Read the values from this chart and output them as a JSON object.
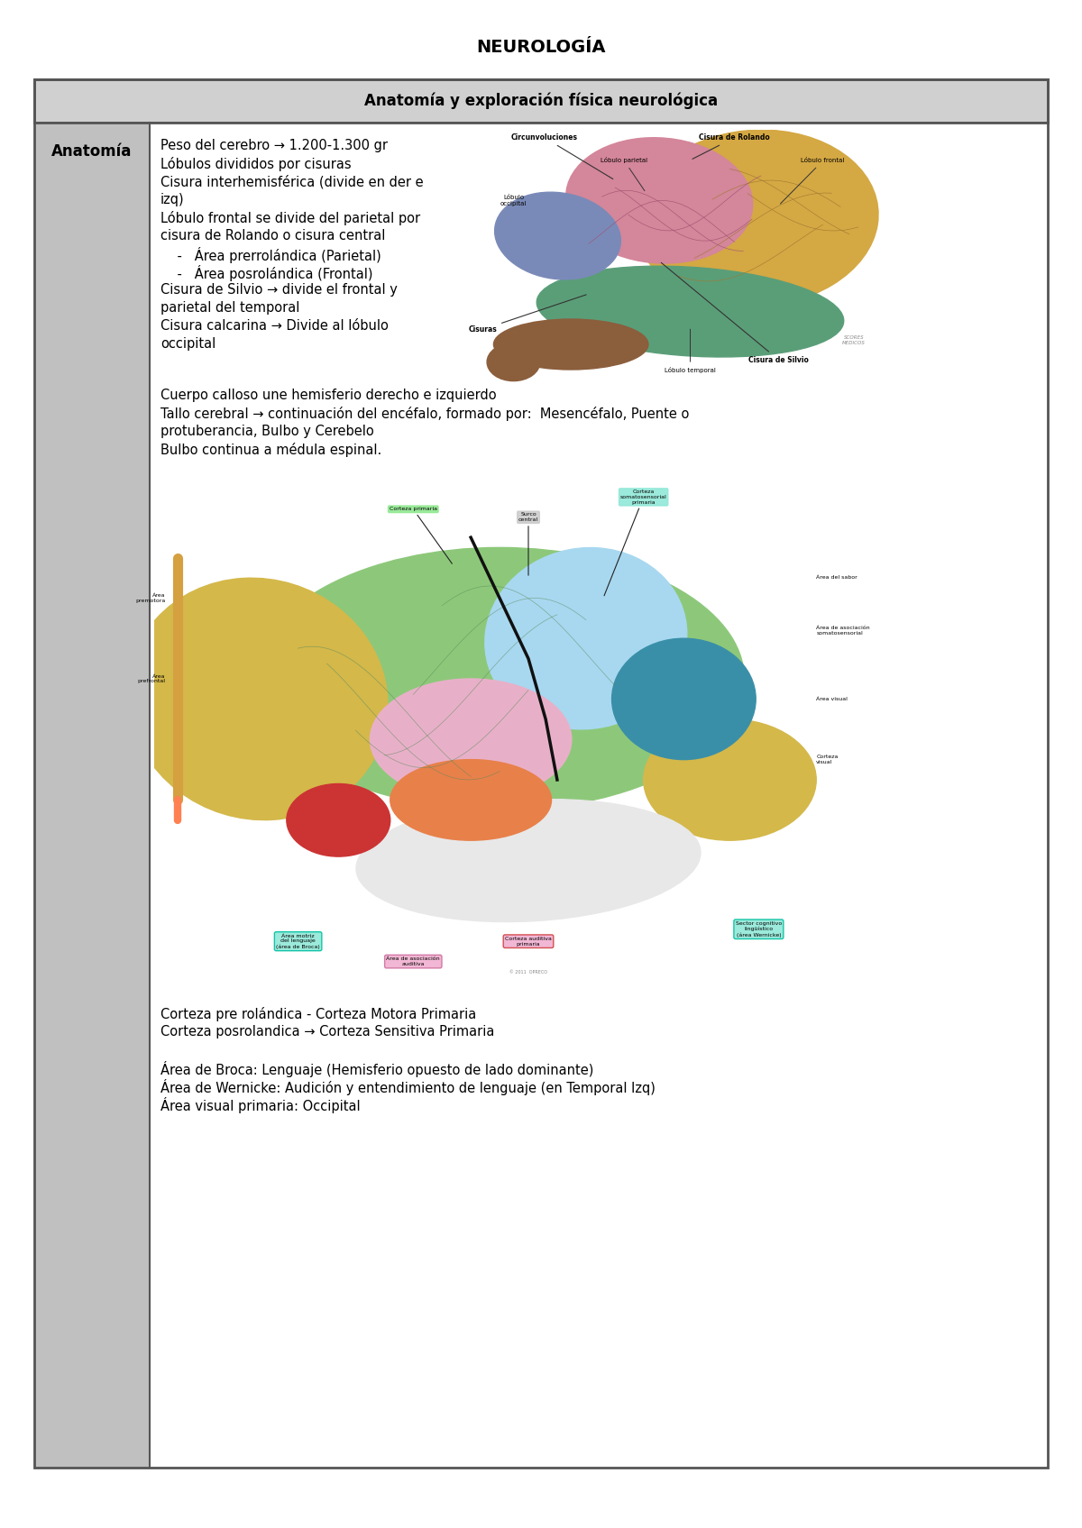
{
  "title": "NEUROLOGÍA",
  "subtitle": "Anatomía y exploración física neurológica",
  "col1_header": "Anatomía",
  "bg_color": "#ffffff",
  "header_bg": "#d0d0d0",
  "table_border": "#555555",
  "col1_bg": "#c0c0c0",
  "col2_bg": "#ffffff",
  "title_fontsize": 14,
  "subtitle_fontsize": 12,
  "body_fontsize": 10.5,
  "col1_header_fontsize": 12,
  "anatomy_text": [
    [
      "Peso del cerebro → 1.200-1.300 gr",
      false
    ],
    [
      "Lóbulos divididos por cisuras",
      false
    ],
    [
      "Cisura interhemisférica (divide en der e",
      false
    ],
    [
      "izq)",
      false
    ],
    [
      "Lóbulo frontal se divide del parietal por",
      false
    ],
    [
      "cisura de Rolando o cisura central",
      false
    ],
    [
      "    -   Área prerrolándica (Parietal)",
      false
    ],
    [
      "    -   Área posrolándica (Frontal)",
      false
    ],
    [
      "Cisura de Silvio → divide el frontal y",
      false
    ],
    [
      "parietal del temporal",
      false
    ],
    [
      "Cisura calcarina → Divide al lóbulo",
      false
    ],
    [
      "occipital",
      false
    ]
  ],
  "text2": [
    "Cuerpo calloso une hemisferio derecho e izquierdo",
    "Tallo cerebral → continuación del encéfalo, formado por:  Mesencéfalo, Puente o",
    "protuberancia, Bulbo y Cerebelo",
    "Bulbo continua a médula espinal."
  ],
  "text3": [
    "Corteza pre rolándica - Corteza Motora Primaria",
    "Corteza posrolandica → Corteza Sensitiva Primaria"
  ],
  "text4": [
    "Área de Broca: Lenguaje (Hemisferio opuesto de lado dominante)",
    "Área de Wernicke: Audición y entendimiento de lenguaje (en Temporal Izq)",
    "Área visual primaria: Occipital"
  ]
}
